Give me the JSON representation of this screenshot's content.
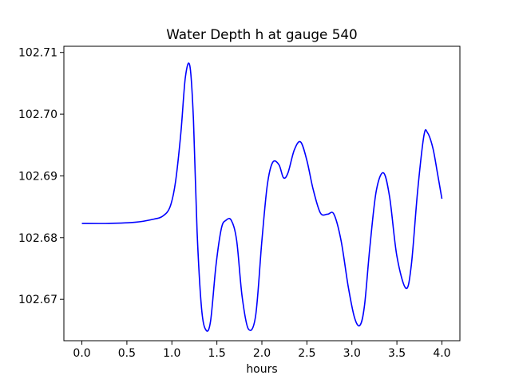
{
  "chart_data": {
    "type": "line",
    "title": "Water Depth h at gauge 540",
    "xlabel": "hours",
    "ylabel": "",
    "xlim": [
      -0.2,
      4.2
    ],
    "ylim": [
      102.6633,
      102.711
    ],
    "xticks": [
      0.0,
      0.5,
      1.0,
      1.5,
      2.0,
      2.5,
      3.0,
      3.5,
      4.0
    ],
    "xtick_labels": [
      "0.0",
      "0.5",
      "1.0",
      "1.5",
      "2.0",
      "2.5",
      "3.0",
      "3.5",
      "4.0"
    ],
    "yticks": [
      102.67,
      102.68,
      102.69,
      102.7,
      102.71
    ],
    "ytick_labels": [
      "102.67",
      "102.68",
      "102.69",
      "102.70",
      "102.71"
    ],
    "grid": false,
    "series": [
      {
        "color": "#0000ff",
        "x": [
          0.0,
          0.3,
          0.6,
          0.8,
          0.9,
          0.98,
          1.04,
          1.1,
          1.15,
          1.2,
          1.24,
          1.28,
          1.33,
          1.38,
          1.43,
          1.49,
          1.55,
          1.6,
          1.66,
          1.72,
          1.78,
          1.85,
          1.93,
          2.0,
          2.06,
          2.12,
          2.19,
          2.24,
          2.29,
          2.36,
          2.43,
          2.5,
          2.57,
          2.65,
          2.73,
          2.8,
          2.88,
          2.96,
          3.03,
          3.09,
          3.14,
          3.2,
          3.27,
          3.35,
          3.42,
          3.5,
          3.6,
          3.66,
          3.73,
          3.8,
          3.84,
          3.9,
          3.95,
          4.0
        ],
        "y": [
          102.6823,
          102.6823,
          102.6825,
          102.683,
          102.6835,
          102.685,
          102.689,
          102.697,
          102.706,
          102.7078,
          102.699,
          102.681,
          102.6685,
          102.665,
          102.6665,
          102.6755,
          102.6815,
          102.6828,
          102.6828,
          102.6795,
          102.6705,
          102.6652,
          102.6673,
          102.6795,
          102.6885,
          102.6922,
          102.6918,
          102.6897,
          102.6905,
          102.6942,
          102.6955,
          102.6925,
          102.6878,
          102.684,
          102.6838,
          102.6838,
          102.6795,
          102.672,
          102.667,
          102.6658,
          102.669,
          102.6785,
          102.6875,
          102.6905,
          102.6865,
          102.677,
          102.6718,
          102.6755,
          102.6875,
          102.6965,
          102.697,
          102.6945,
          102.6905,
          102.6863
        ]
      }
    ]
  }
}
